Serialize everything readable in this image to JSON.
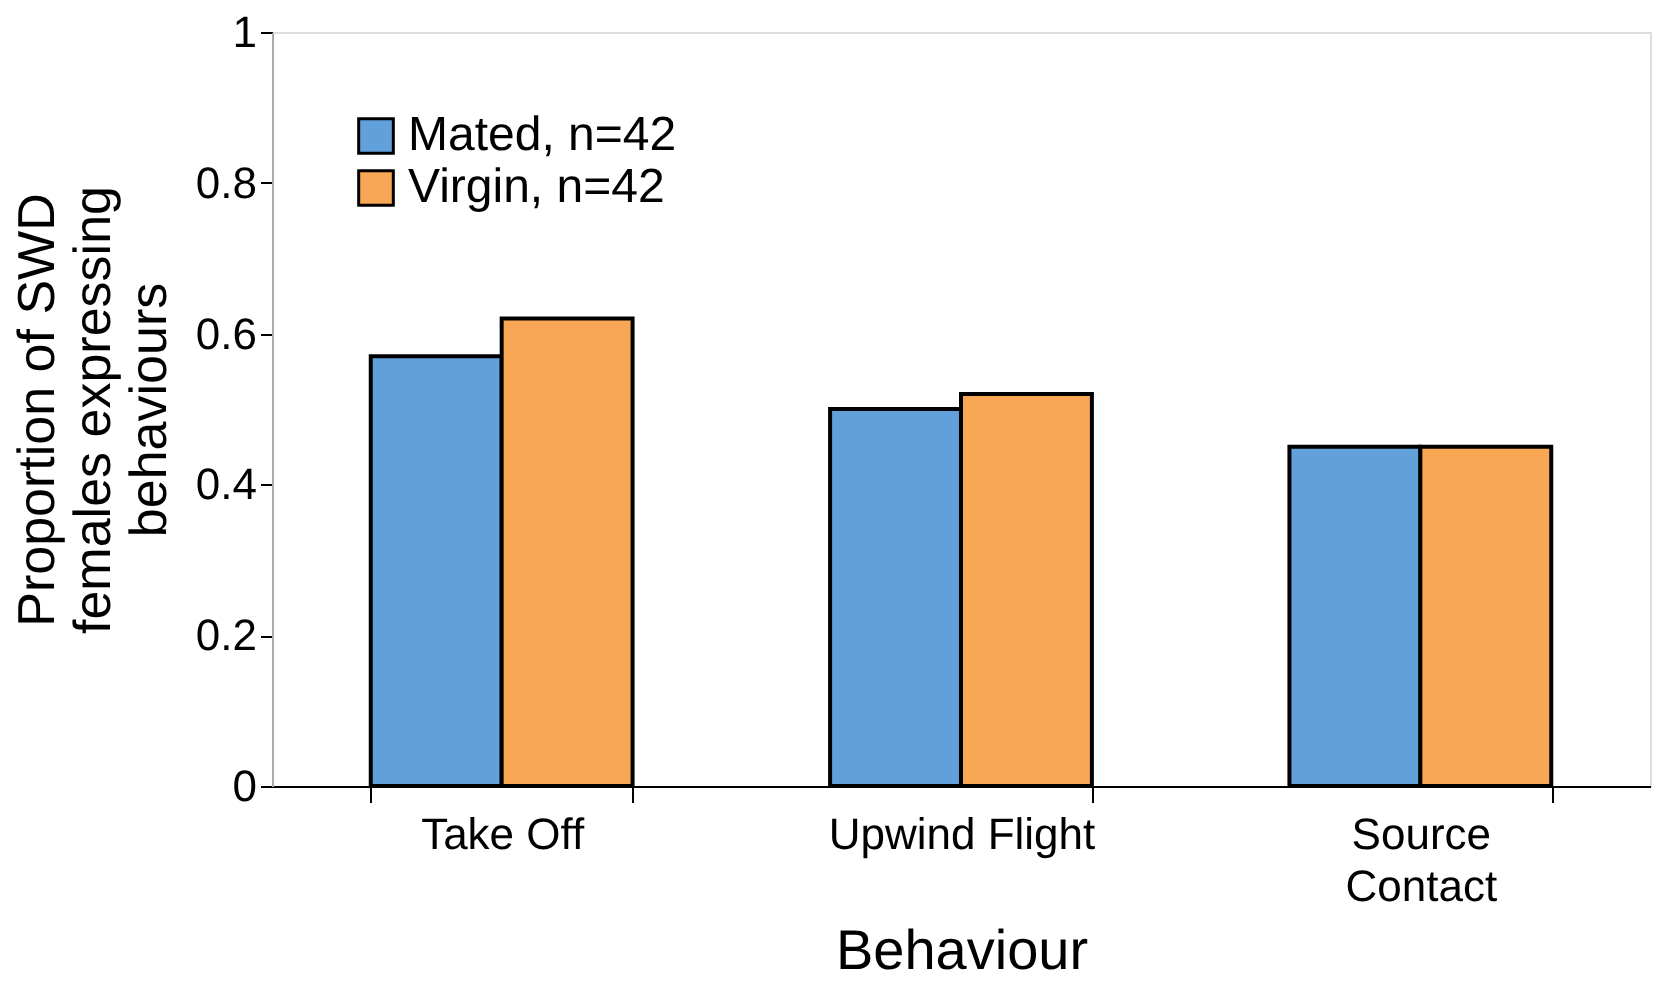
{
  "chart_data": {
    "type": "bar",
    "xlabel": "Behaviour",
    "ylabel": "Proportion of SWD females expressing behaviours",
    "categories": [
      "Take Off",
      "Upwind Flight",
      "Source Contact"
    ],
    "series": [
      {
        "name": "Mated, n=42",
        "color": "#62a0db",
        "values": [
          0.57,
          0.5,
          0.45
        ]
      },
      {
        "name": "Virgin, n=42",
        "color": "#f8a755",
        "values": [
          0.62,
          0.52,
          0.45
        ]
      }
    ],
    "ylim": [
      0,
      1
    ],
    "yticks": [
      0,
      0.2,
      0.4,
      0.6,
      0.8,
      1
    ],
    "grid": false,
    "legend": "top left"
  }
}
